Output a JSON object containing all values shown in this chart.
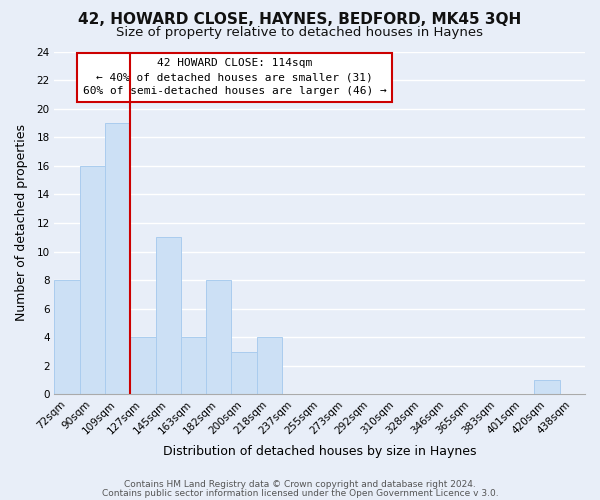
{
  "title": "42, HOWARD CLOSE, HAYNES, BEDFORD, MK45 3QH",
  "subtitle": "Size of property relative to detached houses in Haynes",
  "xlabel": "Distribution of detached houses by size in Haynes",
  "ylabel": "Number of detached properties",
  "categories": [
    "72sqm",
    "90sqm",
    "109sqm",
    "127sqm",
    "145sqm",
    "163sqm",
    "182sqm",
    "200sqm",
    "218sqm",
    "237sqm",
    "255sqm",
    "273sqm",
    "292sqm",
    "310sqm",
    "328sqm",
    "346sqm",
    "365sqm",
    "383sqm",
    "401sqm",
    "420sqm",
    "438sqm"
  ],
  "values": [
    8,
    16,
    19,
    4,
    11,
    4,
    8,
    3,
    4,
    0,
    0,
    0,
    0,
    0,
    0,
    0,
    0,
    0,
    0,
    1,
    0
  ],
  "bar_color": "#cce0f5",
  "bar_edge_color": "#aaccee",
  "vline_x_index": 2,
  "vline_color": "#cc0000",
  "annotation_title": "42 HOWARD CLOSE: 114sqm",
  "annotation_line1": "← 40% of detached houses are smaller (31)",
  "annotation_line2": "60% of semi-detached houses are larger (46) →",
  "annotation_box_color": "#ffffff",
  "annotation_box_edge": "#cc0000",
  "ylim": [
    0,
    24
  ],
  "yticks": [
    0,
    2,
    4,
    6,
    8,
    10,
    12,
    14,
    16,
    18,
    20,
    22,
    24
  ],
  "footer1": "Contains HM Land Registry data © Crown copyright and database right 2024.",
  "footer2": "Contains public sector information licensed under the Open Government Licence v 3.0.",
  "background_color": "#e8eef8",
  "plot_bg_color": "#e8eef8",
  "grid_color": "#ffffff",
  "title_fontsize": 11,
  "subtitle_fontsize": 9.5,
  "axis_label_fontsize": 9,
  "tick_fontsize": 7.5,
  "annotation_fontsize": 8,
  "footer_fontsize": 6.5
}
